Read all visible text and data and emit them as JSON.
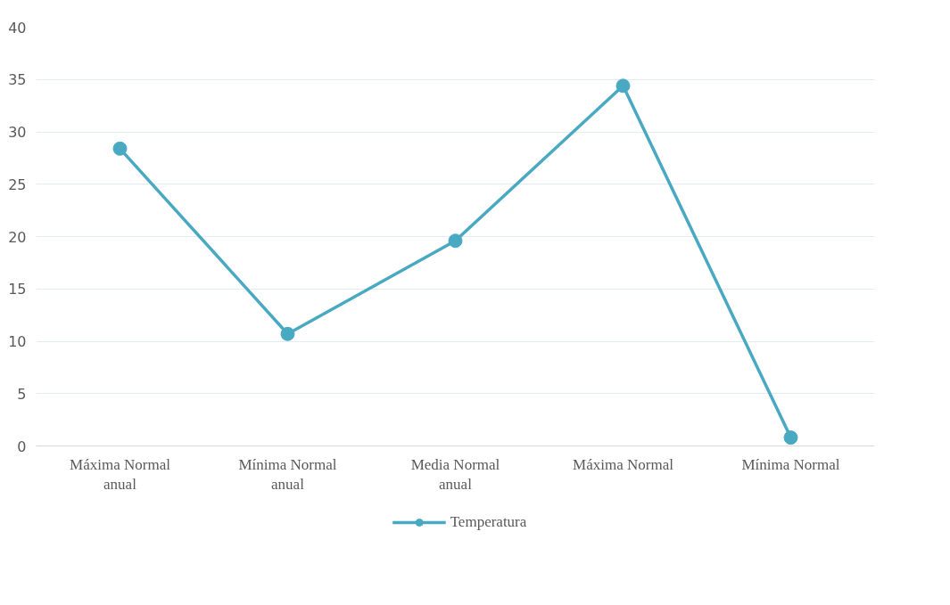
{
  "chart_data": {
    "type": "line",
    "categories": [
      "Máxima Normal anual",
      "Mínima Normal anual",
      "Media Normal anual",
      "Máxima Normal",
      "Mínima Normal"
    ],
    "series": [
      {
        "name": "Temperatura",
        "color": "#4aa9c2",
        "values": [
          28.4,
          10.7,
          19.6,
          34.4,
          0.8
        ]
      }
    ],
    "ylim": [
      0,
      40
    ],
    "yticks": [
      0,
      5,
      10,
      15,
      20,
      25,
      30,
      35,
      40
    ],
    "grid": "y",
    "legend": "bottom",
    "marker": "circle",
    "line_style": "solid"
  }
}
